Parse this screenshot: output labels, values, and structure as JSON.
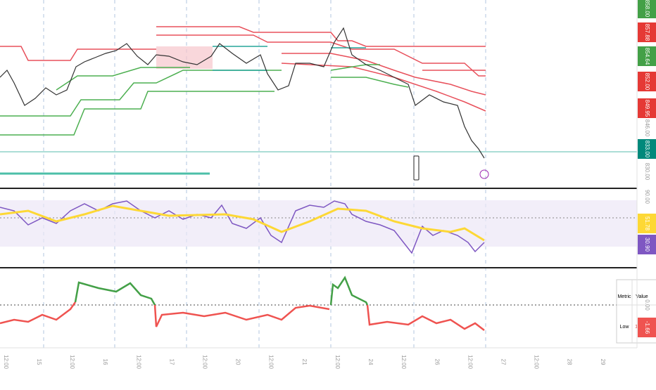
{
  "price_axis": [
    "858.00",
    "857.88",
    "854.64",
    "852.00",
    "849.95",
    "846.00",
    "833.00",
    "830.00"
  ],
  "rsi_axis": [
    "90.00",
    "51.78",
    "30.90"
  ],
  "osc_axis": [
    "0.00",
    "-1.66"
  ],
  "time_axis": [
    "12:00",
    "15",
    "12:00",
    "16",
    "12:00",
    "17",
    "12:00",
    "20",
    "12:00",
    "21",
    "12:00",
    "24",
    "12:00",
    "26",
    "12:00",
    "27",
    "12:00",
    "28",
    "29"
  ],
  "table": {
    "header": [
      "Metric",
      "Value"
    ],
    "rows": [
      [
        "Low",
        "1.68%"
      ]
    ]
  }
}
